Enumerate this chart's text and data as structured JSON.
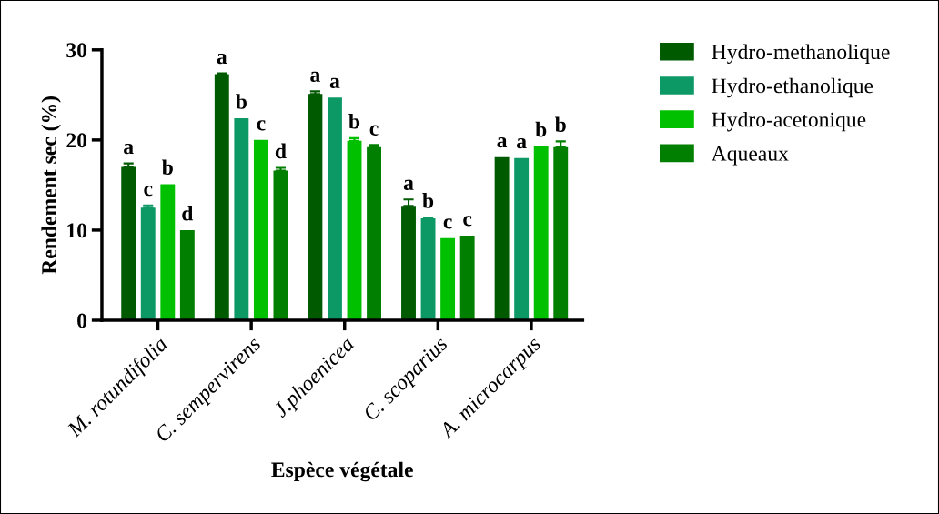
{
  "chart_data": {
    "type": "bar",
    "xlabel": "Espèce végétale",
    "ylabel": "Rendement sec (%)",
    "categories": [
      "M. rotundifolia",
      "C. sempervirens",
      "J.phoenicea",
      "C. scoparius",
      "A. microcarpus"
    ],
    "series": [
      {
        "name": "Hydro-methanolique",
        "color": "#005a00",
        "values": [
          17.0,
          27.3,
          25.1,
          12.7,
          18.1
        ],
        "errors": [
          0.4,
          0.1,
          0.3,
          0.7,
          null
        ],
        "value_labels": [
          "a",
          "a",
          "a",
          "a",
          "a"
        ]
      },
      {
        "name": "Hydro-ethanolique",
        "color": "#0c9966",
        "values": [
          12.5,
          22.4,
          24.7,
          11.3,
          18.0
        ],
        "errors": [
          0.25,
          null,
          null,
          0.1,
          null
        ],
        "value_labels": [
          "c",
          "b",
          "a",
          "b",
          "a"
        ]
      },
      {
        "name": "Hydro-acetonique",
        "color": "#00c000",
        "values": [
          15.1,
          20.0,
          19.9,
          9.1,
          19.3
        ],
        "errors": [
          null,
          null,
          0.3,
          null,
          null
        ],
        "value_labels": [
          "b",
          "c",
          "b",
          "c",
          "b"
        ]
      },
      {
        "name": "Aqueaux",
        "color": "#007f00",
        "values": [
          10.0,
          16.6,
          19.2,
          9.4,
          19.2
        ],
        "errors": [
          null,
          0.3,
          0.25,
          null,
          0.65
        ],
        "value_labels": [
          "d",
          "d",
          "c",
          "c",
          "b"
        ]
      }
    ],
    "ylim": [
      0,
      30
    ],
    "yticks": [
      0,
      10,
      20,
      30
    ],
    "grid": false,
    "legend": "right"
  }
}
